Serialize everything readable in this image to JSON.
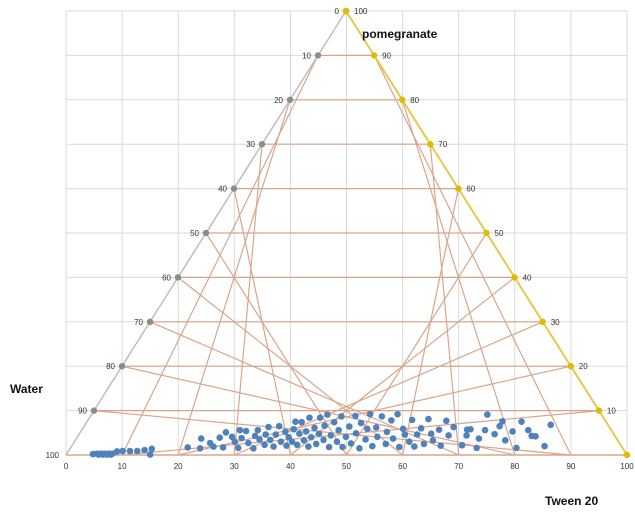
{
  "chart_data": {
    "type": "scatter",
    "subtype": "ternary",
    "axes": {
      "top": {
        "name": "pomegranate",
        "ticks": [
          "0",
          "10",
          "20",
          "30",
          "40",
          "50",
          "60",
          "70",
          "80",
          "90",
          "100"
        ]
      },
      "left": {
        "name": "Water",
        "ticks": [
          "0",
          "10",
          "20",
          "30",
          "40",
          "50",
          "60",
          "70",
          "80",
          "90",
          "100"
        ]
      },
      "bottom": {
        "name": "Tween 20",
        "ticks": [
          "0",
          "10",
          "20",
          "30",
          "40",
          "50",
          "60",
          "70",
          "80",
          "90",
          "100"
        ]
      }
    },
    "grid": true,
    "colors": {
      "inner_grid": "#d9a58a",
      "background_grid": "#d9d9d9",
      "left_edge": "#bdbdbd",
      "right_edge": "#e6c84f",
      "point": "#4f81bd",
      "tick_gray": "#8c8c8c",
      "tick_gold": "#e6b800"
    },
    "points": [
      {
        "x": 5.5,
        "y": 0.3
      },
      {
        "x": 6.2,
        "y": 0.3
      },
      {
        "x": 6.9,
        "y": 0.3
      },
      {
        "x": 7.6,
        "y": 0.3
      },
      {
        "x": 8.3,
        "y": 0.3
      },
      {
        "x": 5.8,
        "y": 0.1
      },
      {
        "x": 6.6,
        "y": 0.1
      },
      {
        "x": 7.3,
        "y": 0.1
      },
      {
        "x": 8.0,
        "y": 0.1
      },
      {
        "x": 4.8,
        "y": 0.2
      },
      {
        "x": 9.1,
        "y": 0.8
      },
      {
        "x": 10.1,
        "y": 0.9
      },
      {
        "x": 11.4,
        "y": 0.9
      },
      {
        "x": 12.7,
        "y": 0.9
      },
      {
        "x": 14.0,
        "y": 1.1
      },
      {
        "x": 15.0,
        "y": 0.1
      },
      {
        "x": 15.3,
        "y": 1.4
      },
      {
        "x": 21.7,
        "y": 1.7
      },
      {
        "x": 23.9,
        "y": 1.5
      },
      {
        "x": 24.1,
        "y": 3.7
      },
      {
        "x": 25.7,
        "y": 2.7
      },
      {
        "x": 26.3,
        "y": 1.9
      },
      {
        "x": 27.4,
        "y": 3.9
      },
      {
        "x": 28.0,
        "y": 1.7
      },
      {
        "x": 28.5,
        "y": 5.1
      },
      {
        "x": 29.6,
        "y": 4.1
      },
      {
        "x": 30.1,
        "y": 3.0
      },
      {
        "x": 30.7,
        "y": 1.6
      },
      {
        "x": 31.0,
        "y": 5.6
      },
      {
        "x": 31.3,
        "y": 3.8
      },
      {
        "x": 32.1,
        "y": 5.4
      },
      {
        "x": 32.5,
        "y": 2.7
      },
      {
        "x": 33.4,
        "y": 1.5
      },
      {
        "x": 33.7,
        "y": 4.3
      },
      {
        "x": 34.2,
        "y": 5.6
      },
      {
        "x": 34.5,
        "y": 3.5
      },
      {
        "x": 35.4,
        "y": 2.3
      },
      {
        "x": 35.6,
        "y": 4.6
      },
      {
        "x": 36.1,
        "y": 6.3
      },
      {
        "x": 36.4,
        "y": 3.4
      },
      {
        "x": 37.0,
        "y": 1.9
      },
      {
        "x": 37.4,
        "y": 4.6
      },
      {
        "x": 38.0,
        "y": 6.5
      },
      {
        "x": 38.3,
        "y": 3.0
      },
      {
        "x": 39.1,
        "y": 5.2
      },
      {
        "x": 39.3,
        "y": 2.1
      },
      {
        "x": 39.7,
        "y": 4.0
      },
      {
        "x": 40.3,
        "y": 3.0
      },
      {
        "x": 40.6,
        "y": 5.8
      },
      {
        "x": 40.9,
        "y": 7.5
      },
      {
        "x": 41.2,
        "y": 2.3
      },
      {
        "x": 41.6,
        "y": 4.8
      },
      {
        "x": 42.0,
        "y": 7.4
      },
      {
        "x": 42.4,
        "y": 3.3
      },
      {
        "x": 42.8,
        "y": 5.3
      },
      {
        "x": 43.2,
        "y": 1.9
      },
      {
        "x": 43.4,
        "y": 8.4
      },
      {
        "x": 43.7,
        "y": 4.0
      },
      {
        "x": 44.3,
        "y": 6.1
      },
      {
        "x": 44.6,
        "y": 2.5
      },
      {
        "x": 45.1,
        "y": 4.8
      },
      {
        "x": 45.3,
        "y": 8.4
      },
      {
        "x": 45.9,
        "y": 3.4
      },
      {
        "x": 46.1,
        "y": 6.6
      },
      {
        "x": 46.6,
        "y": 9.1
      },
      {
        "x": 46.9,
        "y": 1.8
      },
      {
        "x": 47.2,
        "y": 4.4
      },
      {
        "x": 47.8,
        "y": 7.4
      },
      {
        "x": 48.3,
        "y": 3.0
      },
      {
        "x": 48.6,
        "y": 5.6
      },
      {
        "x": 49.1,
        "y": 8.7
      },
      {
        "x": 49.3,
        "y": 1.8
      },
      {
        "x": 49.9,
        "y": 4.1
      },
      {
        "x": 50.5,
        "y": 6.4
      },
      {
        "x": 50.8,
        "y": 2.6
      },
      {
        "x": 51.6,
        "y": 8.8
      },
      {
        "x": 51.7,
        "y": 4.9
      },
      {
        "x": 52.3,
        "y": 1.5
      },
      {
        "x": 52.6,
        "y": 7.2
      },
      {
        "x": 53.4,
        "y": 3.5
      },
      {
        "x": 53.7,
        "y": 5.9
      },
      {
        "x": 54.2,
        "y": 9.2
      },
      {
        "x": 54.6,
        "y": 2.0
      },
      {
        "x": 55.3,
        "y": 6.2
      },
      {
        "x": 55.5,
        "y": 4.1
      },
      {
        "x": 56.3,
        "y": 8.7
      },
      {
        "x": 57.0,
        "y": 2.5
      },
      {
        "x": 57.2,
        "y": 5.2
      },
      {
        "x": 58.0,
        "y": 7.8
      },
      {
        "x": 58.3,
        "y": 3.7
      },
      {
        "x": 59.1,
        "y": 9.2
      },
      {
        "x": 59.4,
        "y": 1.8
      },
      {
        "x": 60.1,
        "y": 5.9
      },
      {
        "x": 60.4,
        "y": 4.6
      },
      {
        "x": 61.2,
        "y": 3.0
      },
      {
        "x": 61.7,
        "y": 7.9
      },
      {
        "x": 62.1,
        "y": 1.9
      },
      {
        "x": 62.6,
        "y": 4.6
      },
      {
        "x": 63.3,
        "y": 6.0
      },
      {
        "x": 63.8,
        "y": 2.5
      },
      {
        "x": 64.6,
        "y": 8.1
      },
      {
        "x": 65.1,
        "y": 4.8
      },
      {
        "x": 65.4,
        "y": 3.3
      },
      {
        "x": 66.5,
        "y": 5.7
      },
      {
        "x": 66.8,
        "y": 2.1
      },
      {
        "x": 67.8,
        "y": 7.7
      },
      {
        "x": 68.2,
        "y": 4.4
      },
      {
        "x": 69.1,
        "y": 6.3
      },
      {
        "x": 70.6,
        "y": 2.2
      },
      {
        "x": 71.4,
        "y": 4.4
      },
      {
        "x": 71.5,
        "y": 5.7
      },
      {
        "x": 72.1,
        "y": 5.8
      },
      {
        "x": 73.2,
        "y": 1.6
      },
      {
        "x": 73.6,
        "y": 3.7
      },
      {
        "x": 74.7,
        "y": 5.6
      },
      {
        "x": 75.1,
        "y": 9.1
      },
      {
        "x": 76.4,
        "y": 4.7
      },
      {
        "x": 77.3,
        "y": 6.5
      },
      {
        "x": 77.8,
        "y": 7.6
      },
      {
        "x": 78.3,
        "y": 3.3
      },
      {
        "x": 79.6,
        "y": 5.3
      },
      {
        "x": 80.3,
        "y": 1.6
      },
      {
        "x": 81.2,
        "y": 7.5
      },
      {
        "x": 82.4,
        "y": 5.6
      },
      {
        "x": 83.0,
        "y": 4.3
      },
      {
        "x": 83.7,
        "y": 4.2
      },
      {
        "x": 85.3,
        "y": 2.0
      },
      {
        "x": 86.4,
        "y": 6.8
      }
    ]
  }
}
